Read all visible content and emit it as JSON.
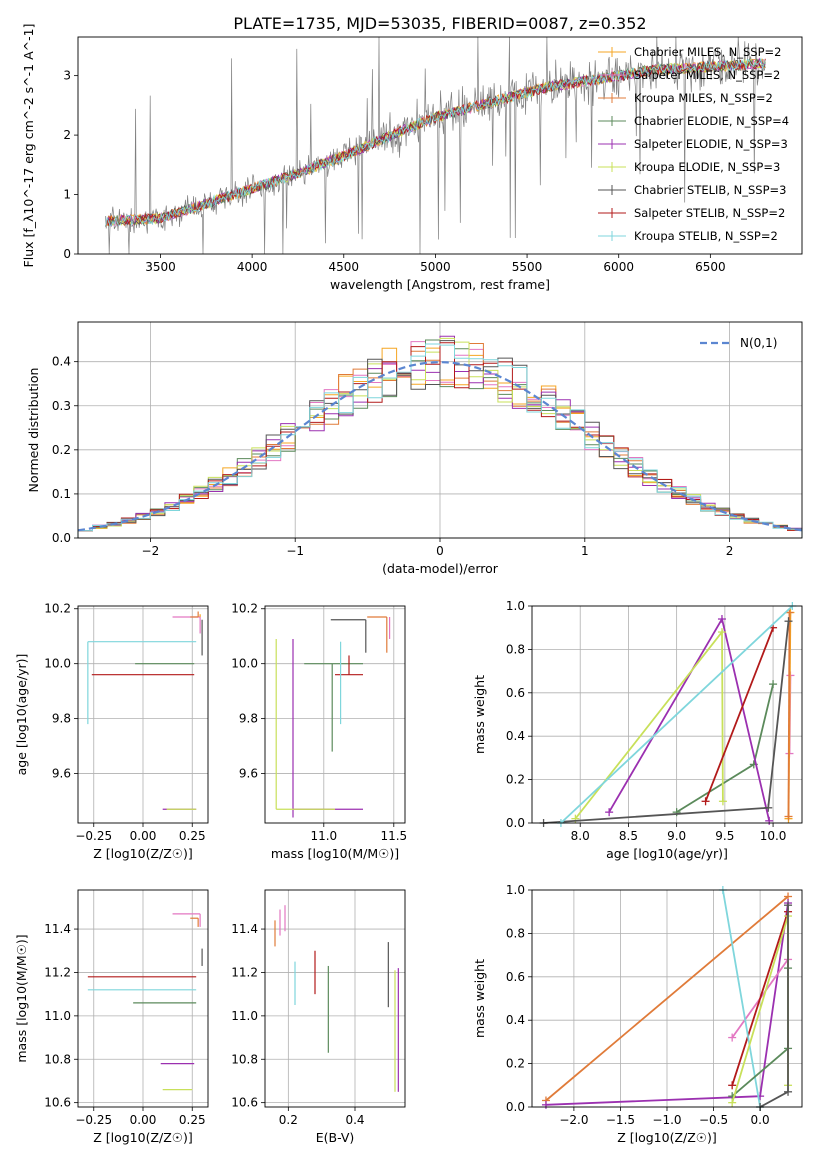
{
  "figure_title": "PLATE=1735, MJD=53035, FIBERID=0087, z=0.352",
  "colors": {
    "chabrier_miles": "#f5a623",
    "salpeter_miles": "#e377c2",
    "kroupa_miles": "#e07b39",
    "chabrier_elodie": "#5b8a5b",
    "salpeter_elodie": "#9b30b0",
    "kroupa_elodie": "#c8e05a",
    "chabrier_stelib": "#555555",
    "salpeter_stelib": "#b21a1a",
    "kroupa_stelib": "#7fd6dc",
    "data": "#7f7f7f",
    "normal": "#5b86d1"
  },
  "chart_data": [
    {
      "id": "spectrum",
      "type": "line",
      "xlabel": "wavelength [Angstrom, rest frame]",
      "ylabel": "Flux [f_λ10^-17 erg cm^-2 s^-1 A^-1]",
      "xlim": [
        3050,
        7000
      ],
      "ylim": [
        0,
        3.65
      ],
      "xticks": [
        3500,
        4000,
        4500,
        5000,
        5500,
        6000,
        6500
      ],
      "yticks": [
        0,
        1,
        2,
        3
      ],
      "grid": false,
      "legend_position": "top-right",
      "legend": [
        {
          "label": "Chabrier MILES, N_SSP=2",
          "color_key": "chabrier_miles"
        },
        {
          "label": "Salpeter MILES, N_SSP=2",
          "color_key": "salpeter_miles"
        },
        {
          "label": "Kroupa MILES, N_SSP=2",
          "color_key": "kroupa_miles"
        },
        {
          "label": "Chabrier ELODIE, N_SSP=4",
          "color_key": "chabrier_elodie"
        },
        {
          "label": "Salpeter ELODIE, N_SSP=3",
          "color_key": "salpeter_elodie"
        },
        {
          "label": "Kroupa ELODIE, N_SSP=3",
          "color_key": "kroupa_elodie"
        },
        {
          "label": "Chabrier STELIB, N_SSP=3",
          "color_key": "chabrier_stelib"
        },
        {
          "label": "Salpeter STELIB, N_SSP=2",
          "color_key": "salpeter_stelib"
        },
        {
          "label": "Kroupa STELIB, N_SSP=2",
          "color_key": "kroupa_stelib"
        }
      ],
      "continuum": {
        "x": [
          3200,
          3500,
          3800,
          4000,
          4200,
          4500,
          4800,
          5000,
          5300,
          5600,
          5900,
          6200,
          6500,
          6800
        ],
        "y": [
          0.55,
          0.6,
          0.9,
          1.1,
          1.3,
          1.65,
          2.05,
          2.3,
          2.55,
          2.8,
          2.95,
          3.1,
          3.15,
          3.2
        ]
      }
    },
    {
      "id": "residuals",
      "type": "histogram",
      "xlabel": "(data-model)/error",
      "ylabel": "Normed distribution",
      "xlim": [
        -2.5,
        2.5
      ],
      "ylim": [
        0,
        0.49
      ],
      "xticks": [
        -2,
        -1,
        0,
        1,
        2
      ],
      "yticks": [
        0.0,
        0.1,
        0.2,
        0.3,
        0.4
      ],
      "grid": true,
      "legend_position": "top-right",
      "legend": [
        {
          "label": "N(0,1)",
          "style": "dashed",
          "color_key": "normal"
        }
      ],
      "bin_width": 0.1,
      "bin_start": -2.5
    },
    {
      "id": "age_vs_Z",
      "type": "errorbar",
      "xlabel": "Z [log10(Z/Z☉)]",
      "ylabel": "age [log10(age/yr)]",
      "xlim": [
        -0.33,
        0.33
      ],
      "ylim": [
        9.42,
        10.21
      ],
      "xticks": [
        -0.25,
        0.0,
        0.25
      ],
      "yticks": [
        9.6,
        9.8,
        10.0,
        10.2
      ],
      "grid": true,
      "points": [
        {
          "x": 0.29,
          "y": 10.17,
          "xerr": [
            0.14,
            0.0
          ],
          "yerr": [
            0.06,
            0.0
          ],
          "color_key": "salpeter_miles"
        },
        {
          "x": 0.29,
          "y": 10.17,
          "xerr": [
            0.0,
            0.0
          ],
          "yerr": [
            0.0,
            0.01
          ],
          "color_key": "chabrier_miles"
        },
        {
          "x": 0.28,
          "y": 10.17,
          "xerr": [
            0.04,
            0.0
          ],
          "yerr": [
            0.0,
            0.02
          ],
          "color_key": "kroupa_miles"
        },
        {
          "x": 0.26,
          "y": 10.0,
          "xerr": [
            0.3,
            0.0
          ],
          "yerr": [
            0.0,
            0.0
          ],
          "color_key": "chabrier_elodie"
        },
        {
          "x": 0.27,
          "y": 9.47,
          "xerr": [
            0.17,
            0.0
          ],
          "yerr": [
            0.0,
            0.0
          ],
          "color_key": "salpeter_elodie"
        },
        {
          "x": 0.27,
          "y": 9.47,
          "xerr": [
            0.15,
            0.0
          ],
          "yerr": [
            0.0,
            0.0
          ],
          "color_key": "kroupa_elodie"
        },
        {
          "x": 0.3,
          "y": 10.16,
          "xerr": [
            0.0,
            0.0
          ],
          "yerr": [
            0.13,
            0.0
          ],
          "color_key": "chabrier_stelib"
        },
        {
          "x": 0.26,
          "y": 9.96,
          "xerr": [
            0.52,
            0.0
          ],
          "yerr": [
            0.0,
            0.0
          ],
          "color_key": "salpeter_stelib"
        },
        {
          "x": -0.28,
          "y": 10.08,
          "xerr": [
            0.0,
            0.55
          ],
          "yerr": [
            0.3,
            0.0
          ],
          "color_key": "kroupa_stelib"
        }
      ]
    },
    {
      "id": "age_vs_mass",
      "type": "errorbar",
      "xlabel": "mass [log10(M/M☉)]",
      "ylabel": "",
      "xlim": [
        10.58,
        11.58
      ],
      "ylim": [
        9.42,
        10.21
      ],
      "xticks": [
        11.0,
        11.5
      ],
      "yticks": [
        9.6,
        9.8,
        10.0,
        10.2
      ],
      "grid": true,
      "points": [
        {
          "x": 11.47,
          "y": 10.17,
          "xerr": [
            0.0,
            0.0
          ],
          "yerr": [
            0.08,
            0.0
          ],
          "color_key": "salpeter_miles"
        },
        {
          "x": 11.45,
          "y": 10.17,
          "xerr": [
            0.14,
            0.0
          ],
          "yerr": [
            0.13,
            0.0
          ],
          "color_key": "kroupa_miles"
        },
        {
          "x": 11.3,
          "y": 10.16,
          "xerr": [
            0.25,
            0.0
          ],
          "yerr": [
            0.12,
            0.0
          ],
          "color_key": "chabrier_stelib"
        },
        {
          "x": 11.06,
          "y": 10.0,
          "xerr": [
            0.2,
            0.22
          ],
          "yerr": [
            0.32,
            0.0
          ],
          "color_key": "chabrier_elodie"
        },
        {
          "x": 11.18,
          "y": 9.96,
          "xerr": [
            0.1,
            0.1
          ],
          "yerr": [
            0.0,
            0.07
          ],
          "color_key": "salpeter_stelib"
        },
        {
          "x": 11.12,
          "y": 10.08,
          "xerr": [
            0.0,
            0.0
          ],
          "yerr": [
            0.3,
            0.0
          ],
          "color_key": "kroupa_stelib"
        },
        {
          "x": 10.78,
          "y": 9.47,
          "xerr": [
            0.0,
            0.5
          ],
          "yerr": [
            0.03,
            0.62
          ],
          "color_key": "salpeter_elodie"
        },
        {
          "x": 10.66,
          "y": 9.47,
          "xerr": [
            0.0,
            0.42
          ],
          "yerr": [
            0.0,
            0.62
          ],
          "color_key": "kroupa_elodie"
        }
      ]
    },
    {
      "id": "weight_vs_age",
      "type": "line",
      "xlabel": "age [log10(age/yr)]",
      "ylabel": "mass weight",
      "xlim": [
        7.5,
        10.3
      ],
      "ylim": [
        0.0,
        1.0
      ],
      "xticks": [
        8.0,
        8.5,
        9.0,
        9.5,
        10.0
      ],
      "yticks": [
        0.0,
        0.2,
        0.4,
        0.6,
        0.8,
        1.0
      ],
      "grid": true,
      "series": [
        {
          "color_key": "salpeter_miles",
          "x": [
            10.17,
            10.18
          ],
          "y": [
            0.32,
            0.68
          ]
        },
        {
          "color_key": "chabrier_miles",
          "x": [
            10.16,
            10.18
          ],
          "y": [
            0.02,
            0.97
          ]
        },
        {
          "color_key": "kroupa_miles",
          "x": [
            10.16,
            10.17
          ],
          "y": [
            0.03,
            0.97
          ]
        },
        {
          "color_key": "chabrier_elodie",
          "x": [
            9.0,
            9.8,
            10.0
          ],
          "y": [
            0.05,
            0.27,
            0.64
          ]
        },
        {
          "color_key": "salpeter_elodie",
          "x": [
            8.3,
            9.47,
            9.96
          ],
          "y": [
            0.05,
            0.94,
            0.01
          ]
        },
        {
          "color_key": "kroupa_elodie",
          "x": [
            7.95,
            9.47,
            9.48
          ],
          "y": [
            0.02,
            0.88,
            0.1
          ]
        },
        {
          "color_key": "chabrier_stelib",
          "x": [
            7.62,
            9.95,
            10.16
          ],
          "y": [
            0.0,
            0.07,
            0.93
          ]
        },
        {
          "color_key": "salpeter_stelib",
          "x": [
            9.3,
            10.0
          ],
          "y": [
            0.1,
            0.9
          ]
        },
        {
          "color_key": "kroupa_stelib",
          "x": [
            7.8,
            10.2
          ],
          "y": [
            0.0,
            1.0
          ]
        }
      ]
    },
    {
      "id": "mass_vs_Z",
      "type": "errorbar",
      "xlabel": "Z [log10(Z/Z☉)]",
      "ylabel": "mass [log10(M/M☉)]",
      "xlim": [
        -0.33,
        0.33
      ],
      "ylim": [
        10.58,
        11.58
      ],
      "xticks": [
        -0.25,
        0.0,
        0.25
      ],
      "yticks": [
        10.6,
        10.8,
        11.0,
        11.2,
        11.4
      ],
      "grid": true,
      "points": [
        {
          "x": 0.29,
          "y": 11.47,
          "xerr": [
            0.14,
            0.0
          ],
          "yerr": [
            0.06,
            0.0
          ],
          "color_key": "salpeter_miles"
        },
        {
          "x": 0.28,
          "y": 11.45,
          "xerr": [
            0.04,
            0.0
          ],
          "yerr": [
            0.04,
            0.0
          ],
          "color_key": "kroupa_miles"
        },
        {
          "x": 0.3,
          "y": 11.31,
          "xerr": [
            0.0,
            0.0
          ],
          "yerr": [
            0.08,
            0.0
          ],
          "color_key": "chabrier_stelib"
        },
        {
          "x": 0.27,
          "y": 11.18,
          "xerr": [
            0.55,
            0.0
          ],
          "yerr": [
            0.0,
            0.0
          ],
          "color_key": "salpeter_stelib"
        },
        {
          "x": 0.27,
          "y": 11.12,
          "xerr": [
            0.55,
            0.0
          ],
          "yerr": [
            0.0,
            0.0
          ],
          "color_key": "kroupa_stelib"
        },
        {
          "x": 0.27,
          "y": 11.06,
          "xerr": [
            0.32,
            0.0
          ],
          "yerr": [
            0.0,
            0.0
          ],
          "color_key": "chabrier_elodie"
        },
        {
          "x": 0.26,
          "y": 10.78,
          "xerr": [
            0.17,
            0.0
          ],
          "yerr": [
            0.0,
            0.0
          ],
          "color_key": "salpeter_elodie"
        },
        {
          "x": 0.25,
          "y": 10.66,
          "xerr": [
            0.15,
            0.0
          ],
          "yerr": [
            0.0,
            0.0
          ],
          "color_key": "kroupa_elodie"
        }
      ]
    },
    {
      "id": "mass_vs_ebv",
      "type": "errorbar",
      "xlabel": "E(B-V)",
      "ylabel": "",
      "xlim": [
        0.13,
        0.55
      ],
      "ylim": [
        10.58,
        11.58
      ],
      "xticks": [
        0.2,
        0.4
      ],
      "yticks": [
        10.6,
        10.8,
        11.0,
        11.2,
        11.4
      ],
      "grid": true,
      "points": [
        {
          "x": 0.16,
          "y": 11.38,
          "xerr": [
            0,
            0
          ],
          "yerr": [
            0.06,
            0.06
          ],
          "color_key": "kroupa_miles"
        },
        {
          "x": 0.175,
          "y": 11.43,
          "xerr": [
            0,
            0
          ],
          "yerr": [
            0.06,
            0.06
          ],
          "color_key": "salpeter_miles"
        },
        {
          "x": 0.19,
          "y": 11.45,
          "xerr": [
            0,
            0
          ],
          "yerr": [
            0.06,
            0.06
          ],
          "color_key": "salpeter_miles"
        },
        {
          "x": 0.22,
          "y": 11.15,
          "xerr": [
            0,
            0
          ],
          "yerr": [
            0.1,
            0.1
          ],
          "color_key": "kroupa_stelib"
        },
        {
          "x": 0.28,
          "y": 11.2,
          "xerr": [
            0,
            0
          ],
          "yerr": [
            0.1,
            0.1
          ],
          "color_key": "salpeter_stelib"
        },
        {
          "x": 0.32,
          "y": 11.03,
          "xerr": [
            0,
            0
          ],
          "yerr": [
            0.2,
            0.2
          ],
          "color_key": "chabrier_elodie"
        },
        {
          "x": 0.5,
          "y": 11.19,
          "xerr": [
            0,
            0
          ],
          "yerr": [
            0.15,
            0.15
          ],
          "color_key": "chabrier_stelib"
        },
        {
          "x": 0.52,
          "y": 10.9,
          "xerr": [
            0,
            0
          ],
          "yerr": [
            0.25,
            0.31
          ],
          "color_key": "kroupa_elodie"
        },
        {
          "x": 0.53,
          "y": 11.0,
          "xerr": [
            0,
            0
          ],
          "yerr": [
            0.35,
            0.22
          ],
          "color_key": "salpeter_elodie"
        }
      ]
    },
    {
      "id": "weight_vs_Z",
      "type": "line",
      "xlabel": "Z [log10(Z/Z☉)]",
      "ylabel": "mass weight",
      "xlim": [
        -2.45,
        0.45
      ],
      "ylim": [
        0.0,
        1.0
      ],
      "xticks": [
        -2.0,
        -1.5,
        -1.0,
        -0.5,
        0.0
      ],
      "yticks": [
        0.0,
        0.2,
        0.4,
        0.6,
        0.8,
        1.0
      ],
      "grid": true,
      "series": [
        {
          "color_key": "kroupa_miles",
          "x": [
            -2.3,
            0.3
          ],
          "y": [
            0.03,
            0.97
          ]
        },
        {
          "color_key": "salpeter_elodie",
          "x": [
            -2.3,
            0.0,
            0.3
          ],
          "y": [
            0.01,
            0.05,
            0.94
          ]
        },
        {
          "color_key": "salpeter_miles",
          "x": [
            -0.3,
            0.3
          ],
          "y": [
            0.32,
            0.68
          ]
        },
        {
          "color_key": "salpeter_stelib",
          "x": [
            -0.3,
            0.3
          ],
          "y": [
            0.1,
            0.9
          ]
        },
        {
          "color_key": "kroupa_stelib",
          "x": [
            -0.4,
            0.0
          ],
          "y": [
            1.0,
            0.0
          ]
        },
        {
          "color_key": "chabrier_elodie",
          "x": [
            -0.3,
            0.3,
            0.3
          ],
          "y": [
            0.05,
            0.27,
            0.64
          ]
        },
        {
          "color_key": "kroupa_elodie",
          "x": [
            -0.3,
            0.3,
            0.3
          ],
          "y": [
            0.02,
            0.88,
            0.1
          ]
        },
        {
          "color_key": "chabrier_stelib",
          "x": [
            0.0,
            0.3,
            0.3
          ],
          "y": [
            0.0,
            0.07,
            0.93
          ]
        }
      ]
    }
  ]
}
